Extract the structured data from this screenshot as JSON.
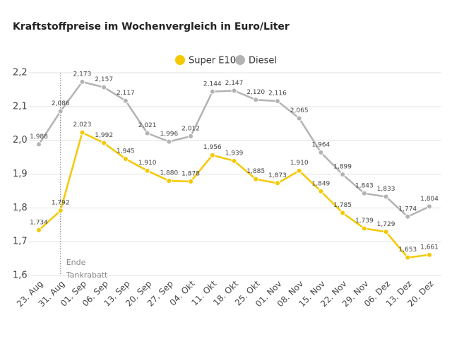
{
  "chart_data": {
    "type": "line",
    "title": "Kraftstoffpreise im Wochenvergleich in Euro/Liter",
    "categories": [
      "23. Aug",
      "31. Aug",
      "01. Sep",
      "06. Sep",
      "13. Sep",
      "20. Sep",
      "27. Sep",
      "04. Okt",
      "11. Okt",
      "18. Okt",
      "25. Okt",
      "01. Nov",
      "08. Nov",
      "15. Nov",
      "22. Nov",
      "29. Nov",
      "06. Dez",
      "13. Dez",
      "20. Dez"
    ],
    "series": [
      {
        "name": "Super E10",
        "color": "#f5c800",
        "values": [
          1.734,
          1.792,
          2.023,
          1.992,
          1.945,
          1.91,
          1.88,
          1.878,
          1.956,
          1.939,
          1.885,
          1.873,
          1.91,
          1.849,
          1.785,
          1.739,
          1.729,
          1.653,
          1.661
        ],
        "value_labels": [
          "1,734",
          "1,792",
          "2,023",
          "1,992",
          "1,945",
          "1,910",
          "1,880",
          "1,878",
          "1,956",
          "1,939",
          "1,885",
          "1,873",
          "1,910",
          "1,849",
          "1,785",
          "1,739",
          "1,729",
          "1,653",
          "1,661"
        ]
      },
      {
        "name": "Diesel",
        "color": "#b3b3b3",
        "values": [
          1.988,
          2.086,
          2.173,
          2.157,
          2.117,
          2.021,
          1.996,
          2.012,
          2.144,
          2.147,
          2.12,
          2.116,
          2.065,
          1.964,
          1.899,
          1.843,
          1.833,
          1.774,
          1.804
        ],
        "value_labels": [
          "1,988",
          "2,086",
          "2,173",
          "2,157",
          "2,117",
          "2,021",
          "1,996",
          "2,012",
          "2,144",
          "2,147",
          "2,120",
          "2,116",
          "2,065",
          "1,964",
          "1,899",
          "1,843",
          "1,833",
          "1,774",
          "1,804"
        ]
      }
    ],
    "ylim": [
      1.6,
      2.2
    ],
    "yticks": [
      {
        "value": 1.6,
        "label": "1,6"
      },
      {
        "value": 1.7,
        "label": "1,7"
      },
      {
        "value": 1.8,
        "label": "1,8"
      },
      {
        "value": 1.9,
        "label": "1,9"
      },
      {
        "value": 2.0,
        "label": "2,0"
      },
      {
        "value": 2.1,
        "label": "2,1"
      },
      {
        "value": 2.2,
        "label": "2,2"
      }
    ],
    "grid": true,
    "annotation": {
      "at": "31. Aug",
      "lines": [
        "Ende",
        "Tankrabatt"
      ]
    }
  }
}
